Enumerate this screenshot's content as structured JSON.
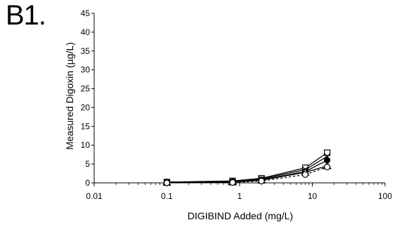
{
  "panel_label": "B1.",
  "chart_data": {
    "type": "line",
    "title": "",
    "xlabel": "DIGIBIND Added (mg/L)",
    "ylabel": "Measured Digoxin (µg/L)",
    "x_scale": "log",
    "xlim": [
      0.01,
      100
    ],
    "ylim": [
      0,
      45
    ],
    "x_ticks": [
      0.01,
      0.1,
      1,
      10,
      100
    ],
    "x_tick_labels": [
      "0.01",
      "0.1",
      "1",
      "10",
      "100"
    ],
    "y_ticks": [
      0,
      5,
      10,
      15,
      20,
      25,
      30,
      35,
      40,
      45
    ],
    "y_tick_labels": [
      "0",
      "5",
      "10",
      "15",
      "20",
      "25",
      "30",
      "35",
      "40",
      "45"
    ],
    "grid": false,
    "legend": "none",
    "x": [
      0.1,
      0.8,
      2,
      8,
      16
    ],
    "series": [
      {
        "marker": "square-open",
        "line": "solid",
        "values": [
          0.2,
          0.5,
          1.2,
          4.0,
          8.0
        ]
      },
      {
        "marker": "x",
        "line": "solid",
        "values": [
          0.2,
          0.4,
          1.0,
          3.5,
          7.0
        ]
      },
      {
        "marker": "circle-filled",
        "line": "solid",
        "values": [
          0.1,
          0.3,
          0.8,
          3.0,
          6.0
        ]
      },
      {
        "marker": "triangle-open",
        "line": "solid",
        "values": [
          0.1,
          0.2,
          0.7,
          2.8,
          4.5
        ]
      },
      {
        "marker": "circle-open",
        "line": "dashed",
        "values": [
          0.0,
          0.1,
          0.5,
          2.2,
          4.2
        ]
      }
    ]
  }
}
